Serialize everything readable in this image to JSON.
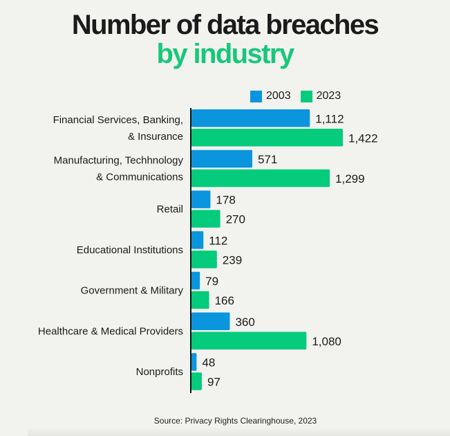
{
  "chart_data": {
    "type": "bar",
    "orientation": "horizontal",
    "title": "Number of data breaches",
    "subtitle": "by industry",
    "categories": [
      [
        "Financial Services, Banking,",
        "& Insurance"
      ],
      [
        "Manufacturing, Techhnology",
        "& Communications"
      ],
      [
        "Retail"
      ],
      [
        "Educational Institutions"
      ],
      [
        "Government & Military"
      ],
      [
        "Healthcare & Medical Providers"
      ],
      [
        "Nonprofits"
      ]
    ],
    "series": [
      {
        "name": "2003",
        "color": "#0a95dd",
        "values": [
          1112,
          571,
          178,
          112,
          79,
          360,
          48
        ],
        "labels": [
          "1,112",
          "571",
          "178",
          "112",
          "79",
          "360",
          "48"
        ]
      },
      {
        "name": "2023",
        "color": "#05cb7c",
        "values": [
          1422,
          1299,
          270,
          239,
          166,
          1080,
          97
        ],
        "labels": [
          "1,422",
          "1,299",
          "270",
          "239",
          "166",
          "1,080",
          "97"
        ]
      }
    ],
    "xlabel": "",
    "ylabel": "",
    "xlim": [
      0,
      1422
    ],
    "grid": false,
    "legend": "top-right",
    "source": "Source: Privacy Rights Clearinghouse, 2023"
  },
  "accent_title_color": "#17c77a"
}
